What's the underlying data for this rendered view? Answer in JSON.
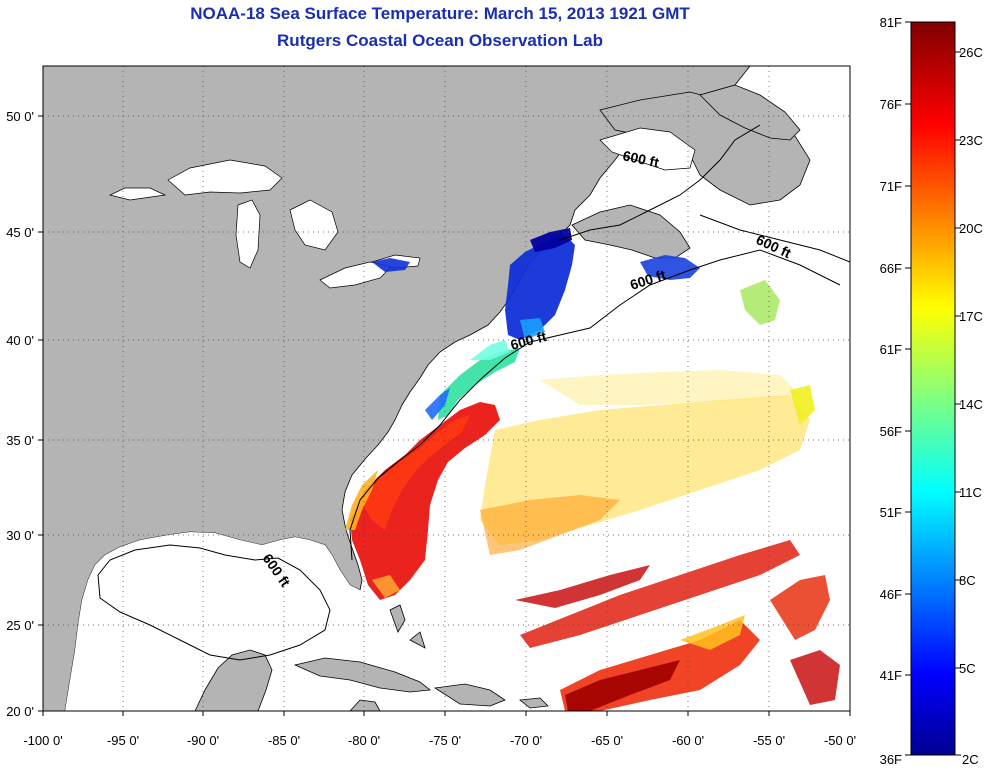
{
  "title": {
    "line1": "NOAA-18 Sea Surface Temperature:  March 15, 2013 1921 GMT",
    "line2": "Rutgers Coastal Ocean Observation Lab"
  },
  "map": {
    "lon_ticks": [
      "-100 0'",
      "-95 0'",
      "-90 0'",
      "-85 0'",
      "-80 0'",
      "-75 0'",
      "-70 0'",
      "-65 0'",
      "-60 0'",
      "-55 0'",
      "-50 0'"
    ],
    "lat_ticks": [
      "50 0'",
      "45 0'",
      "40 0'",
      "35 0'",
      "30 0'",
      "25 0'",
      "20 0'"
    ],
    "isobath_labels": [
      "600 ft",
      "600 ft",
      "600 ft",
      "600 ft",
      "600 ft"
    ],
    "land_color": "#b4b4b4",
    "grid": "dotted"
  },
  "colorbar": {
    "fahrenheit": [
      "81F",
      "76F",
      "71F",
      "66F",
      "61F",
      "56F",
      "51F",
      "46F",
      "41F",
      "36F"
    ],
    "celsius": [
      "26C",
      "23C",
      "20C",
      "17C",
      "14C",
      "11C",
      "8C",
      "5C",
      "2C"
    ],
    "colormap": "jet"
  }
}
